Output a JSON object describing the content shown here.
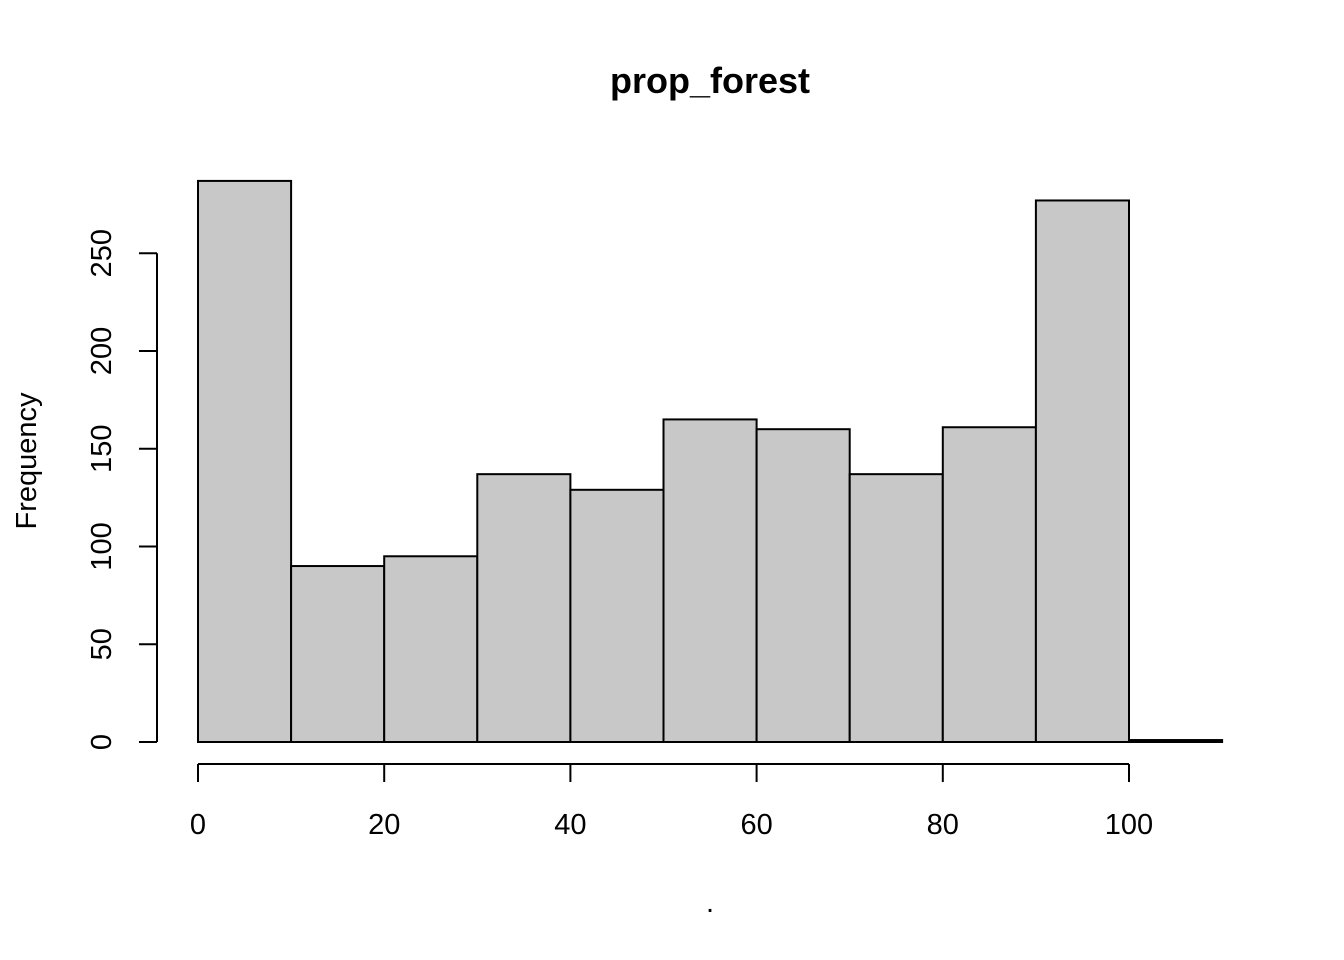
{
  "chart_data": {
    "type": "bar",
    "title": "prop_forest",
    "xlabel": ".",
    "ylabel": "Frequency",
    "bins": [
      {
        "x0": 0,
        "x1": 10,
        "count": 287
      },
      {
        "x0": 10,
        "x1": 20,
        "count": 90
      },
      {
        "x0": 20,
        "x1": 30,
        "count": 95
      },
      {
        "x0": 30,
        "x1": 40,
        "count": 137
      },
      {
        "x0": 40,
        "x1": 50,
        "count": 129
      },
      {
        "x0": 50,
        "x1": 60,
        "count": 165
      },
      {
        "x0": 60,
        "x1": 70,
        "count": 160
      },
      {
        "x0": 70,
        "x1": 80,
        "count": 137
      },
      {
        "x0": 80,
        "x1": 90,
        "count": 161
      },
      {
        "x0": 90,
        "x1": 100,
        "count": 277
      },
      {
        "x0": 100,
        "x1": 110,
        "count": 1
      }
    ],
    "x_ticks": [
      0,
      20,
      40,
      60,
      80,
      100
    ],
    "y_ticks": [
      0,
      50,
      100,
      150,
      200,
      250
    ],
    "xlim": [
      0,
      110
    ],
    "ylim": [
      0,
      287
    ],
    "bar_fill": "#c8c8c8",
    "bar_stroke": "#000000",
    "grid": false
  }
}
